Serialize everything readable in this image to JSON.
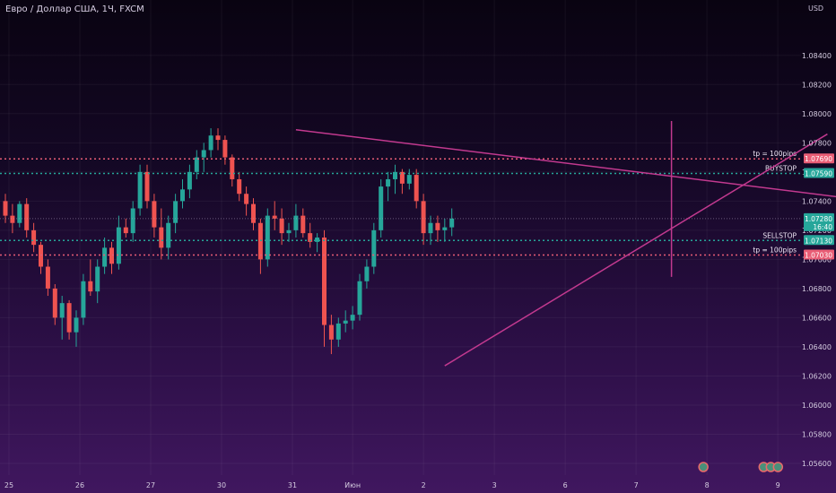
{
  "title": "Евро / Доллар США, 1Ч, FXCM",
  "unit": "USD",
  "chart_data": {
    "type": "candlestick",
    "ylim": [
      1.0552,
      1.0878
    ],
    "y_ticks": [
      "1.08400",
      "1.08200",
      "1.08000",
      "1.07800",
      "1.07600",
      "1.07400",
      "1.07200",
      "1.07000",
      "1.06800",
      "1.06600",
      "1.06400",
      "1.06200",
      "1.06000",
      "1.05800",
      "1.05600"
    ],
    "x_ticks": [
      "25",
      "26",
      "27",
      "30",
      "31",
      "Июн",
      "2",
      "3",
      "6",
      "7",
      "8",
      "9"
    ],
    "colors": {
      "bull": "#26a69a",
      "bear": "#ef5350",
      "trendline": "#c2398f",
      "level": "#ee5c8e",
      "current": "#26a69a"
    },
    "levels": [
      {
        "name": "tp-upper",
        "value": 1.0769,
        "label": "1.07690",
        "annotation": "tp = 100pips",
        "color": "#e85d75"
      },
      {
        "name": "buystop",
        "value": 1.0759,
        "label": "1.07590",
        "annotation": "BUYSTOP",
        "color": "#26a69a"
      },
      {
        "name": "sellstop",
        "value": 1.0713,
        "label": "1.07130",
        "annotation": "SELLSTOP",
        "color": "#26a69a"
      },
      {
        "name": "tp-lower",
        "value": 1.0703,
        "label": "1.07030",
        "annotation": "tp = 100pips",
        "color": "#e85d75"
      }
    ],
    "current_price": {
      "value": 1.0728,
      "label": "1.07280",
      "countdown": "16:40"
    },
    "trendlines": [
      {
        "name": "descending",
        "from": {
          "x": 41,
          "y": 1.0789
        },
        "to": {
          "x": 124,
          "y": 1.0739
        }
      },
      {
        "name": "ascending",
        "from": {
          "x": 62,
          "y": 1.0627
        },
        "to": {
          "x": 116,
          "y": 1.0786
        }
      },
      {
        "name": "vertical-marker",
        "from": {
          "x": 94,
          "y": 1.0795
        },
        "to": {
          "x": 94,
          "y": 1.0688
        }
      }
    ],
    "event_markers": [
      {
        "x": 98.5,
        "count": 1
      },
      {
        "x": 107,
        "count": 3
      },
      {
        "x": 118,
        "count": 3
      }
    ],
    "candles": [
      [
        1.074,
        1.0745,
        1.0725,
        1.073
      ],
      [
        1.073,
        1.0738,
        1.0718,
        1.0725
      ],
      [
        1.0725,
        1.074,
        1.0722,
        1.0738
      ],
      [
        1.0738,
        1.0742,
        1.0715,
        1.072
      ],
      [
        1.072,
        1.0725,
        1.0705,
        1.071
      ],
      [
        1.071,
        1.0712,
        1.069,
        1.0695
      ],
      [
        1.0695,
        1.07,
        1.0675,
        1.068
      ],
      [
        1.068,
        1.0683,
        1.0655,
        1.066
      ],
      [
        1.066,
        1.0675,
        1.0645,
        1.067
      ],
      [
        1.067,
        1.0672,
        1.0645,
        1.065
      ],
      [
        1.065,
        1.0665,
        1.064,
        1.066
      ],
      [
        1.066,
        1.069,
        1.0655,
        1.0685
      ],
      [
        1.0685,
        1.07,
        1.0675,
        1.0678
      ],
      [
        1.0678,
        1.07,
        1.067,
        1.0695
      ],
      [
        1.0695,
        1.0715,
        1.069,
        1.0708
      ],
      [
        1.0708,
        1.0712,
        1.069,
        1.0697
      ],
      [
        1.0697,
        1.073,
        1.0693,
        1.0722
      ],
      [
        1.0722,
        1.0728,
        1.0715,
        1.0718
      ],
      [
        1.0718,
        1.074,
        1.0712,
        1.0735
      ],
      [
        1.0735,
        1.0765,
        1.073,
        1.076
      ],
      [
        1.076,
        1.0765,
        1.0735,
        1.074
      ],
      [
        1.074,
        1.0745,
        1.0715,
        1.0722
      ],
      [
        1.0722,
        1.0735,
        1.07,
        1.0708
      ],
      [
        1.0708,
        1.073,
        1.07,
        1.0725
      ],
      [
        1.0725,
        1.0745,
        1.0718,
        1.074
      ],
      [
        1.074,
        1.0755,
        1.0735,
        1.0748
      ],
      [
        1.0748,
        1.0765,
        1.0742,
        1.076
      ],
      [
        1.076,
        1.0775,
        1.0755,
        1.077
      ],
      [
        1.077,
        1.078,
        1.076,
        1.0775
      ],
      [
        1.0775,
        1.079,
        1.077,
        1.0785
      ],
      [
        1.0785,
        1.079,
        1.0775,
        1.0782
      ],
      [
        1.0782,
        1.0785,
        1.0765,
        1.077
      ],
      [
        1.077,
        1.0772,
        1.075,
        1.0755
      ],
      [
        1.0755,
        1.076,
        1.074,
        1.0745
      ],
      [
        1.0745,
        1.075,
        1.073,
        1.0738
      ],
      [
        1.0738,
        1.0742,
        1.072,
        1.0725
      ],
      [
        1.0725,
        1.0728,
        1.069,
        1.07
      ],
      [
        1.07,
        1.0735,
        1.0695,
        1.073
      ],
      [
        1.073,
        1.074,
        1.072,
        1.0728
      ],
      [
        1.0728,
        1.0735,
        1.071,
        1.0718
      ],
      [
        1.0718,
        1.0725,
        1.0712,
        1.072
      ],
      [
        1.072,
        1.0738,
        1.0715,
        1.073
      ],
      [
        1.073,
        1.0735,
        1.0715,
        1.0718
      ],
      [
        1.0718,
        1.0725,
        1.0708,
        1.0712
      ],
      [
        1.0712,
        1.0718,
        1.0705,
        1.0715
      ],
      [
        1.0715,
        1.072,
        1.064,
        1.0655
      ],
      [
        1.0655,
        1.0662,
        1.0635,
        1.0645
      ],
      [
        1.0645,
        1.066,
        1.064,
        1.0656
      ],
      [
        1.0656,
        1.0665,
        1.065,
        1.0658
      ],
      [
        1.0658,
        1.0668,
        1.0652,
        1.0662
      ],
      [
        1.0662,
        1.069,
        1.0658,
        1.0685
      ],
      [
        1.0685,
        1.07,
        1.068,
        1.0695
      ],
      [
        1.0695,
        1.0725,
        1.069,
        1.072
      ],
      [
        1.072,
        1.0755,
        1.0715,
        1.075
      ],
      [
        1.075,
        1.076,
        1.074,
        1.0755
      ],
      [
        1.0755,
        1.0765,
        1.0745,
        1.076
      ],
      [
        1.076,
        1.0762,
        1.0745,
        1.0752
      ],
      [
        1.0752,
        1.0762,
        1.0748,
        1.0758
      ],
      [
        1.0758,
        1.0762,
        1.0735,
        1.074
      ],
      [
        1.074,
        1.0745,
        1.071,
        1.0718
      ],
      [
        1.0718,
        1.073,
        1.071,
        1.0725
      ],
      [
        1.0725,
        1.073,
        1.0712,
        1.072
      ],
      [
        1.072,
        1.0728,
        1.0712,
        1.0722
      ],
      [
        1.0722,
        1.0735,
        1.0716,
        1.0728
      ]
    ]
  }
}
